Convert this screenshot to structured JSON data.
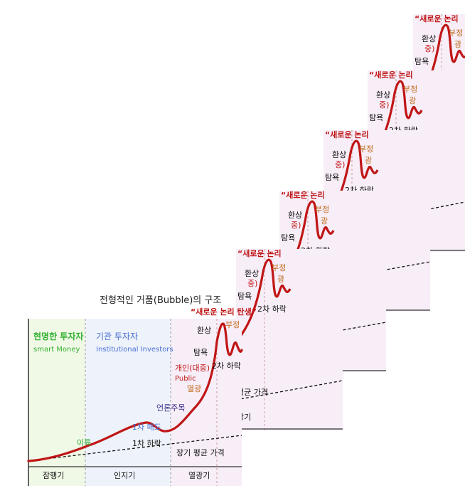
{
  "title": "전형적인 거품(Bubble)의 구조",
  "phases": {
    "smart": {
      "name": "현명한 투자자",
      "sub": "smart Money",
      "stage": "잠행기"
    },
    "institutional": {
      "name": "기관 투자자",
      "sub": "Institutional Investors",
      "stage": "인지기"
    },
    "public": {
      "name": "개인(대중)",
      "sub": "Public",
      "stage": "열광기"
    }
  },
  "annotations": {
    "profit": "이륙",
    "first_sell": "1차 매도",
    "first_drop": "1차 하락",
    "media": "언론주목",
    "frenzy": "열광",
    "greed": "탐욕",
    "delusion": "환상",
    "new_paradigm": "“새로운 논리 탄생”",
    "new_paradigm_clip": "“새로운 논리 ",
    "second_drop": "2차 하락",
    "denial": "부정",
    "long_avg_price": "장기 평균 가격",
    "avg_price": "평균 가격",
    "gwang": "광기",
    "jung": "중)",
    "frenzy2": "광"
  },
  "colors": {
    "curve": "#c01616",
    "green": "#34b233",
    "blue": "#4a6fd1",
    "public": "#c01616",
    "frenzy": "#c06a1a",
    "bg_smart": "#f0f8e6",
    "bg_inst": "#eef3fb",
    "bg_public": "#f6eefa"
  }
}
